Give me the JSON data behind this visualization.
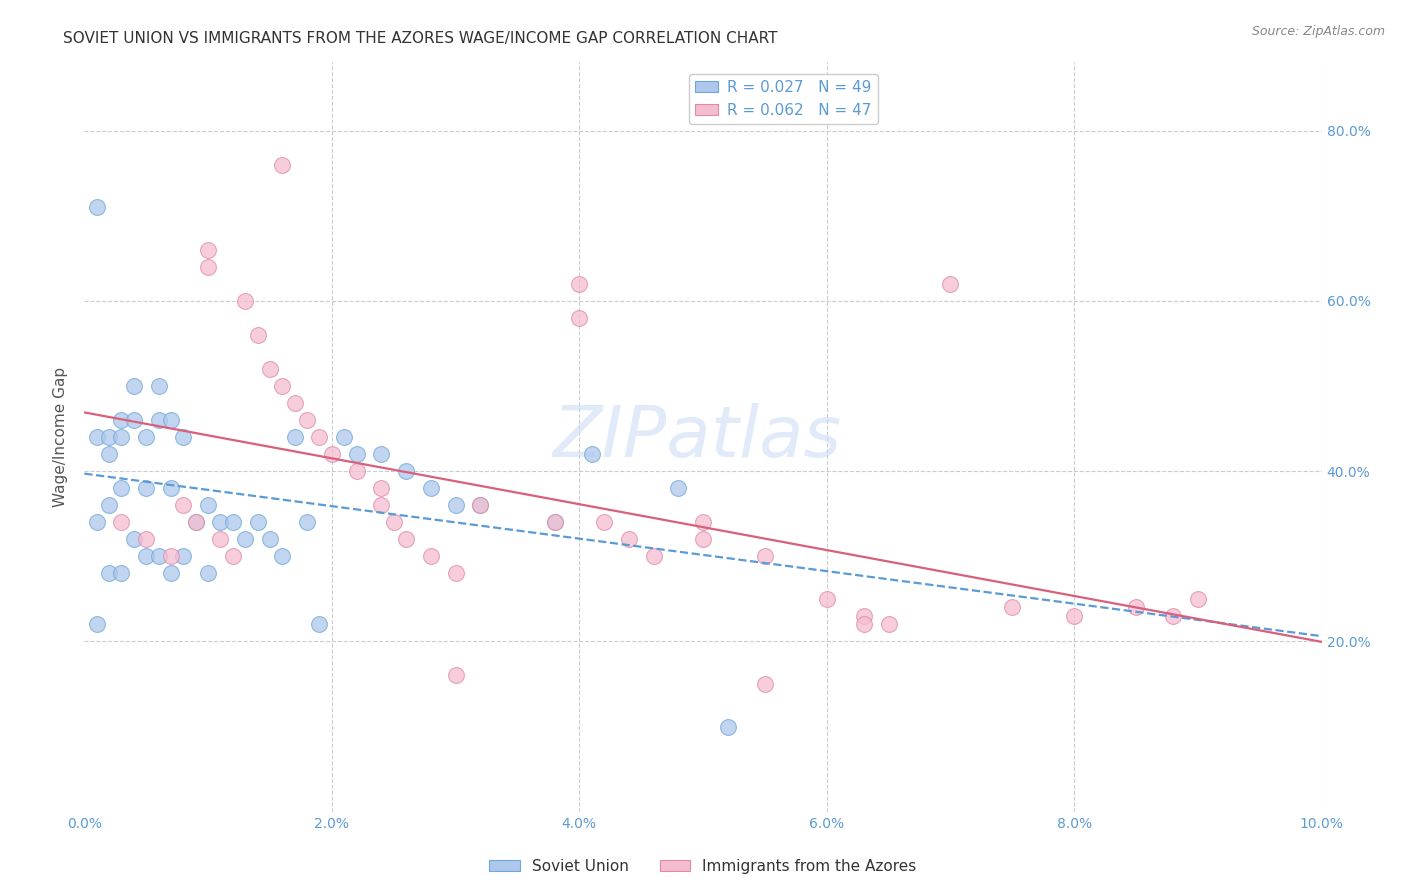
{
  "title": "SOVIET UNION VS IMMIGRANTS FROM THE AZORES WAGE/INCOME GAP CORRELATION CHART",
  "source": "Source: ZipAtlas.com",
  "ylabel": "Wage/Income Gap",
  "xlim": [
    0.0,
    0.1
  ],
  "ylim": [
    0.0,
    0.88
  ],
  "xticks": [
    0.0,
    0.02,
    0.04,
    0.06,
    0.08,
    0.1
  ],
  "yticks": [
    0.2,
    0.4,
    0.6,
    0.8
  ],
  "series1_label": "Soviet Union",
  "series1_R": "0.027",
  "series1_N": "49",
  "series1_fill": "#adc8ec",
  "series1_edge": "#6fa8d8",
  "series1_line": "#5b9bd5",
  "series2_label": "Immigrants from the Azores",
  "series2_R": "0.062",
  "series2_N": "47",
  "series2_fill": "#f5bdd0",
  "series2_edge": "#e08aaa",
  "series2_line": "#d9607a",
  "bg": "#ffffff",
  "grid_color": "#cccccc",
  "title_color": "#333333",
  "tick_color": "#5b9bd5",
  "legend_color": "#5b9bd5",
  "watermark_text": "ZIPatlas",
  "watermark_color": "#c8daf4",
  "soviet_x": [
    0.001,
    0.001,
    0.001,
    0.001,
    0.002,
    0.002,
    0.002,
    0.002,
    0.003,
    0.003,
    0.003,
    0.003,
    0.004,
    0.004,
    0.004,
    0.005,
    0.005,
    0.005,
    0.006,
    0.006,
    0.006,
    0.007,
    0.007,
    0.007,
    0.008,
    0.008,
    0.009,
    0.01,
    0.01,
    0.011,
    0.012,
    0.013,
    0.014,
    0.015,
    0.016,
    0.017,
    0.018,
    0.019,
    0.021,
    0.022,
    0.024,
    0.026,
    0.028,
    0.03,
    0.032,
    0.038,
    0.041,
    0.048,
    0.052
  ],
  "soviet_y": [
    0.71,
    0.44,
    0.34,
    0.22,
    0.44,
    0.42,
    0.36,
    0.28,
    0.46,
    0.44,
    0.38,
    0.28,
    0.5,
    0.46,
    0.32,
    0.44,
    0.38,
    0.3,
    0.5,
    0.46,
    0.3,
    0.46,
    0.38,
    0.28,
    0.44,
    0.3,
    0.34,
    0.36,
    0.28,
    0.34,
    0.34,
    0.32,
    0.34,
    0.32,
    0.3,
    0.44,
    0.34,
    0.22,
    0.44,
    0.42,
    0.42,
    0.4,
    0.38,
    0.36,
    0.36,
    0.34,
    0.42,
    0.38,
    0.1
  ],
  "azores_x": [
    0.016,
    0.01,
    0.01,
    0.013,
    0.014,
    0.015,
    0.016,
    0.017,
    0.018,
    0.019,
    0.02,
    0.022,
    0.024,
    0.024,
    0.025,
    0.026,
    0.028,
    0.03,
    0.032,
    0.038,
    0.04,
    0.04,
    0.042,
    0.044,
    0.046,
    0.05,
    0.055,
    0.06,
    0.063,
    0.063,
    0.065,
    0.07,
    0.075,
    0.08,
    0.085,
    0.088,
    0.09,
    0.003,
    0.005,
    0.007,
    0.008,
    0.009,
    0.011,
    0.012,
    0.03,
    0.05,
    0.055
  ],
  "azores_y": [
    0.76,
    0.66,
    0.64,
    0.6,
    0.56,
    0.52,
    0.5,
    0.48,
    0.46,
    0.44,
    0.42,
    0.4,
    0.38,
    0.36,
    0.34,
    0.32,
    0.3,
    0.28,
    0.36,
    0.34,
    0.58,
    0.62,
    0.34,
    0.32,
    0.3,
    0.34,
    0.3,
    0.25,
    0.23,
    0.22,
    0.22,
    0.62,
    0.24,
    0.23,
    0.24,
    0.23,
    0.25,
    0.34,
    0.32,
    0.3,
    0.36,
    0.34,
    0.32,
    0.3,
    0.16,
    0.32,
    0.15
  ]
}
